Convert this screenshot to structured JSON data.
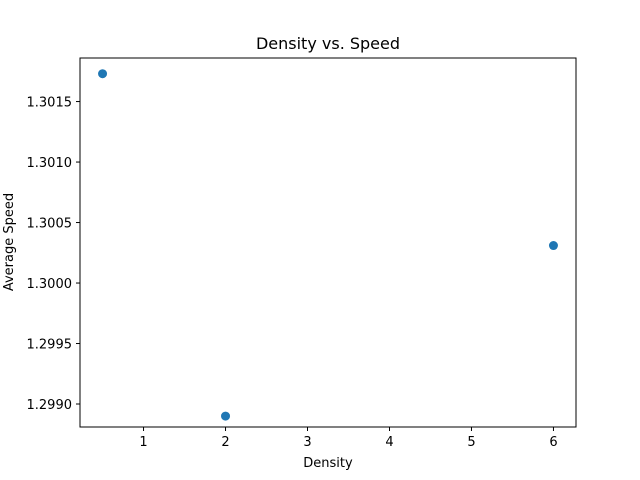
{
  "chart_data": {
    "type": "scatter",
    "title": "Density vs. Speed",
    "xlabel": "Density",
    "ylabel": "Average Speed",
    "x_ticks": [
      "1",
      "2",
      "3",
      "4",
      "5",
      "6"
    ],
    "y_ticks": [
      "1.2990",
      "1.2995",
      "1.3000",
      "1.3005",
      "1.3010",
      "1.3015"
    ],
    "xlim": [
      0.225,
      6.275
    ],
    "ylim": [
      1.29881,
      1.30186
    ],
    "grid": false,
    "marker_color": "#1f77b4",
    "series": [
      {
        "x": [
          0.5,
          2,
          6
        ],
        "y": [
          1.30173,
          1.2989,
          1.30031
        ]
      }
    ]
  }
}
